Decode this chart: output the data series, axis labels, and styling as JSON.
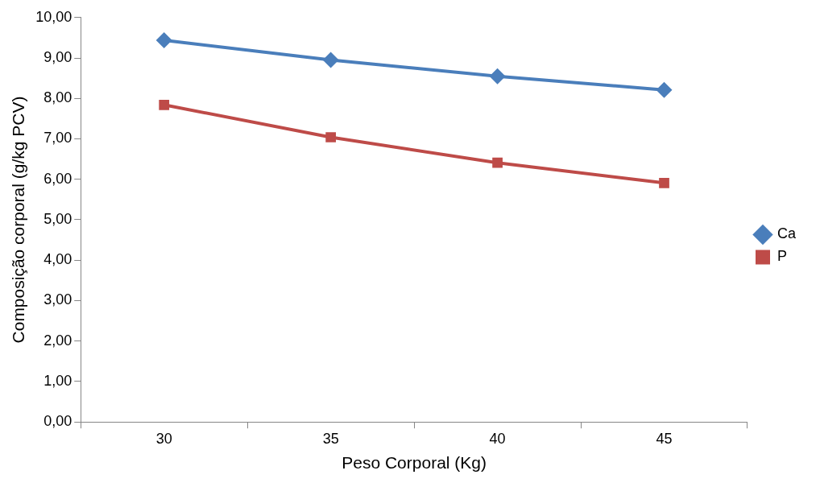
{
  "chart_data": {
    "type": "line",
    "xlabel": "Peso Corporal (Kg)",
    "ylabel": "Composição corporal (g/kg PCV)",
    "categories": [
      "30",
      "35",
      "40",
      "45"
    ],
    "series": [
      {
        "name": "Ca",
        "color": "#4a7ebb",
        "marker": "diamond",
        "values": [
          9.44,
          8.95,
          8.55,
          8.21
        ]
      },
      {
        "name": "P",
        "color": "#be4b48",
        "marker": "square",
        "values": [
          7.84,
          7.04,
          6.41,
          5.91
        ]
      }
    ],
    "ylim": [
      0,
      10
    ],
    "yticks": [
      {
        "value": 0,
        "label": "0,00"
      },
      {
        "value": 1,
        "label": "1,00"
      },
      {
        "value": 2,
        "label": "2,00"
      },
      {
        "value": 3,
        "label": "3,00"
      },
      {
        "value": 4,
        "label": "4,00"
      },
      {
        "value": 5,
        "label": "5,00"
      },
      {
        "value": 6,
        "label": "6,00"
      },
      {
        "value": 7,
        "label": "7,00"
      },
      {
        "value": 8,
        "label": "8,00"
      },
      {
        "value": 9,
        "label": "9,00"
      },
      {
        "value": 10,
        "label": "10,00"
      }
    ],
    "grid": false,
    "legend": "right"
  }
}
